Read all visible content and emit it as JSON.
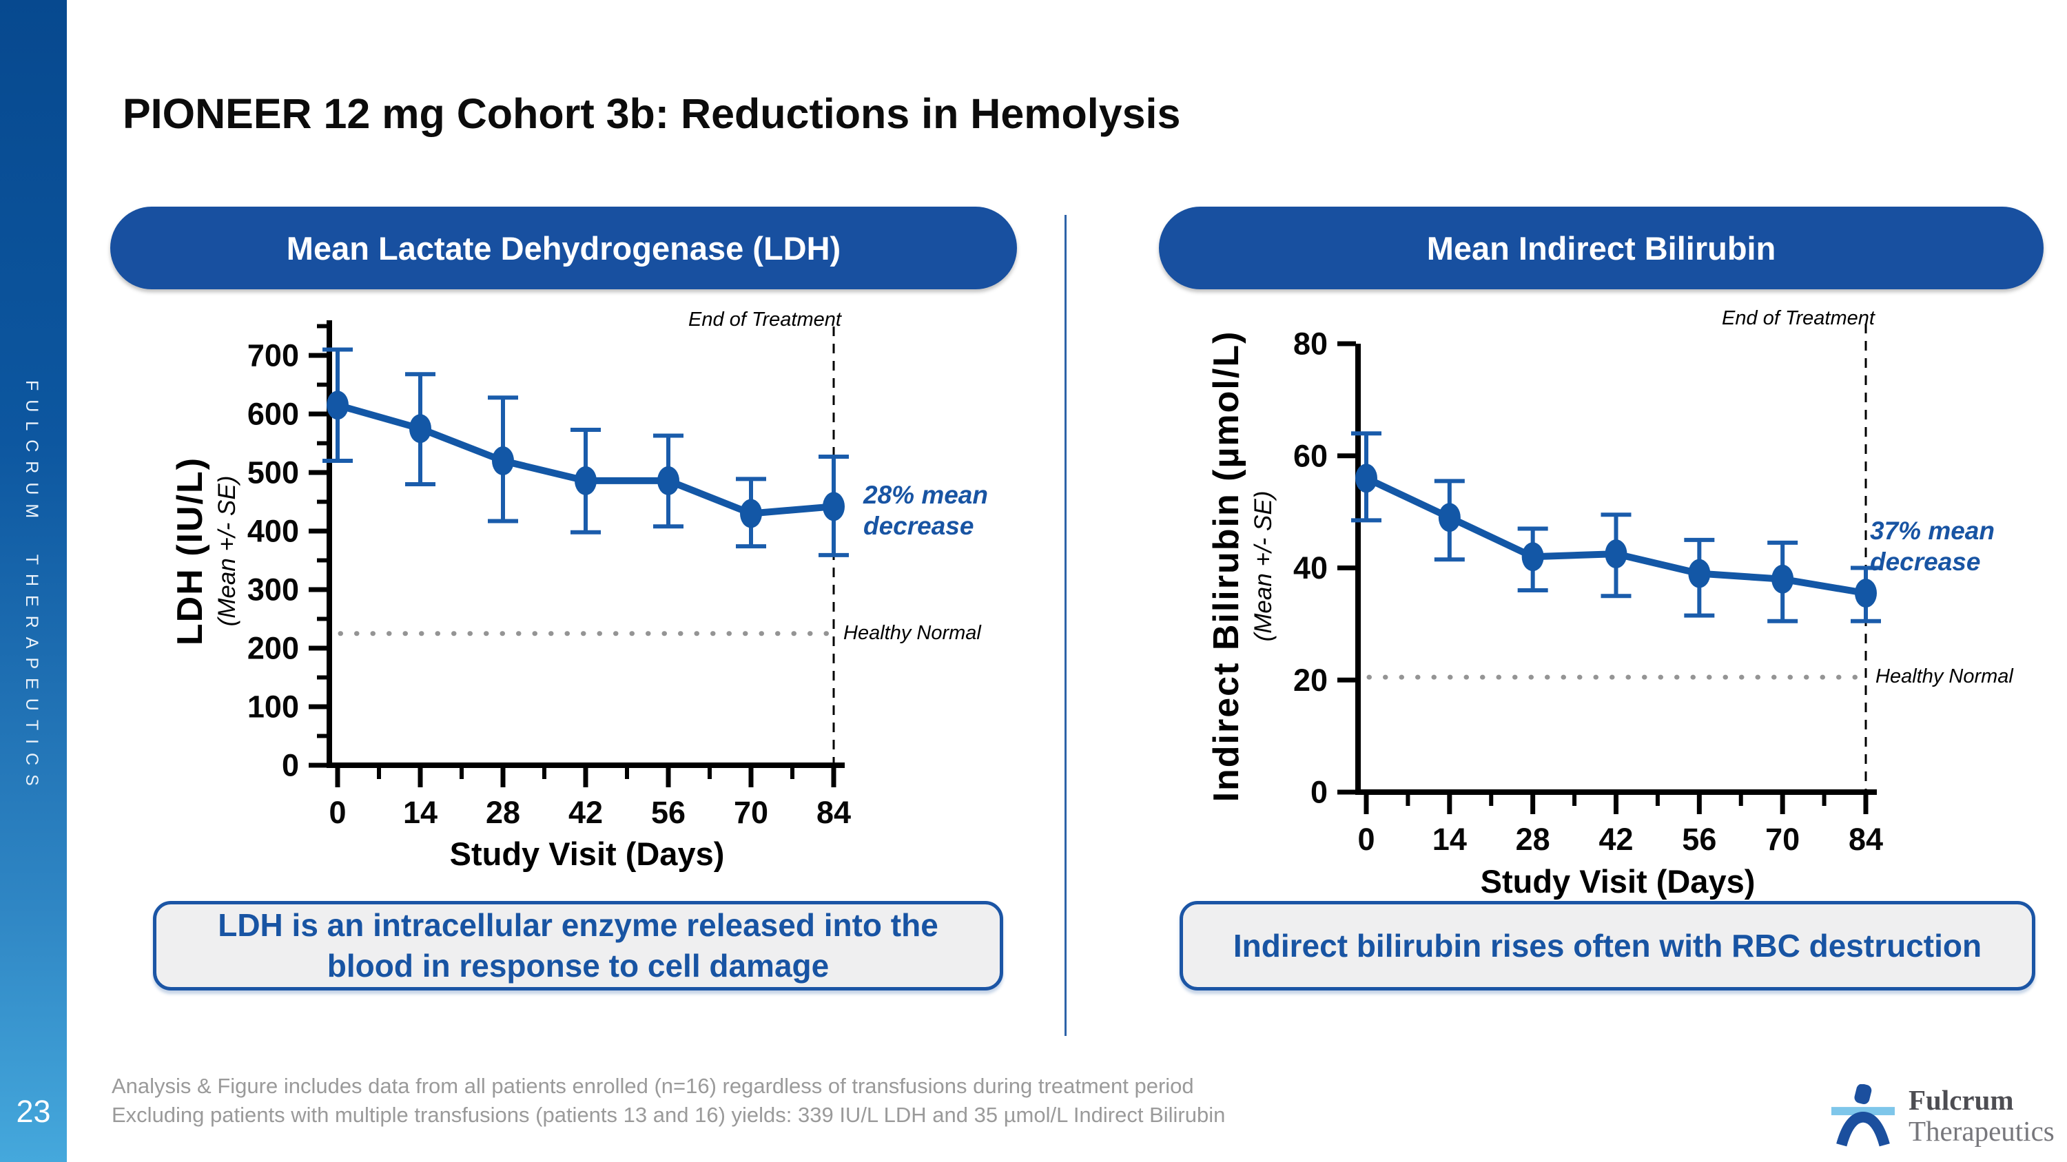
{
  "header": {
    "title": "PIONEER 12 mg Cohort 3b: Reductions in Hemolysis"
  },
  "sidebar": {
    "brand": "FULCRUM THERAPEUTICS",
    "page_number": "23"
  },
  "panels": {
    "ldh": {
      "header": "Mean Lactate Dehydrogenase (LDH)",
      "y_title": "LDH (IU/L)",
      "y_subtitle": "(Mean +/- SE)",
      "x_title": "Study Visit (Days)",
      "note": "28% mean decrease",
      "end_of_treatment_label": "End of Treatment",
      "healthy_normal_label": "Healthy Normal",
      "callout": "LDH is an intracellular enzyme released into the blood in response to cell damage"
    },
    "bilirubin": {
      "header": "Mean Indirect Bilirubin",
      "y_title": "Indirect Bilirubin (µmol/L)",
      "y_subtitle": "(Mean +/- SE)",
      "x_title": "Study Visit (Days)",
      "note": "37% mean decrease",
      "end_of_treatment_label": "End of Treatment",
      "healthy_normal_label": "Healthy Normal",
      "callout": "Indirect bilirubin rises often with RBC destruction"
    }
  },
  "footer": {
    "line1": "Analysis & Figure includes data from all patients enrolled (n=16) regardless of transfusions during treatment period",
    "line2": "Excluding patients with multiple transfusions (patients 13 and 16) yields: 339 IU/L LDH and 35 µmol/L Indirect Bilirubin"
  },
  "logo": {
    "line1": "Fulcrum",
    "line2": "Therapeutics"
  },
  "colors": {
    "pill_blue": "#1850A0",
    "chart_line_blue": "#1357A6",
    "error_bar_blue": "#1A5CAB",
    "note_blue": "#1854A3",
    "healthy_gray": "#949494",
    "footer_gray": "#9A9A9A",
    "sidebar_top": "#07498F",
    "sidebar_bottom": "#45A8DC",
    "callout_bg": "#EFEFF0",
    "logo_dark_blue": "#1B4F9E",
    "logo_light_blue": "#7EC6EA"
  },
  "chart_data": [
    {
      "id": "ldh",
      "type": "line",
      "title": "Mean Lactate Dehydrogenase (LDH)",
      "xlabel": "Study Visit (Days)",
      "ylabel": "LDH (IU/L) (Mean +/- SE)",
      "x": [
        0,
        14,
        28,
        42,
        56,
        70,
        84
      ],
      "xticks": [
        0,
        14,
        28,
        42,
        56,
        70,
        84
      ],
      "x_minor_ticks": [
        7,
        21,
        35,
        49,
        63,
        77
      ],
      "ylim": [
        0,
        760
      ],
      "yticks": [
        0,
        100,
        200,
        300,
        400,
        500,
        600,
        700
      ],
      "y_minor_step": 50,
      "grid": false,
      "series": [
        {
          "name": "Mean LDH (IU/L)",
          "values": [
            615,
            575,
            520,
            486,
            486,
            430,
            442
          ],
          "se_low": [
            520,
            480,
            417,
            398,
            408,
            374,
            359
          ],
          "se_high": [
            710,
            668,
            628,
            573,
            563,
            489,
            527
          ]
        }
      ],
      "annotations": {
        "healthy_normal_y": 225,
        "end_of_treatment_x": 84,
        "mean_decrease_pct": 28
      }
    },
    {
      "id": "bilirubin",
      "type": "line",
      "title": "Mean Indirect Bilirubin",
      "xlabel": "Study Visit (Days)",
      "ylabel": "Indirect Bilirubin (µmol/L) (Mean +/- SE)",
      "x": [
        0,
        14,
        28,
        42,
        56,
        70,
        84
      ],
      "xticks": [
        0,
        14,
        28,
        42,
        56,
        70,
        84
      ],
      "x_minor_ticks": [
        7,
        21,
        35,
        49,
        63,
        77
      ],
      "ylim": [
        0,
        80
      ],
      "yticks": [
        0,
        20,
        40,
        60,
        80
      ],
      "y_minor_step": null,
      "grid": false,
      "series": [
        {
          "name": "Mean Indirect Bilirubin (µmol/L)",
          "values": [
            56,
            49,
            42,
            42.5,
            39,
            38,
            35.5
          ],
          "se_low": [
            48.5,
            41.5,
            36,
            35,
            31.5,
            30.5,
            30.5
          ],
          "se_high": [
            64,
            55.5,
            47,
            49.5,
            45,
            44.5,
            40
          ]
        }
      ],
      "annotations": {
        "healthy_normal_y": 20.5,
        "end_of_treatment_x": 84,
        "mean_decrease_pct": 37
      }
    }
  ]
}
